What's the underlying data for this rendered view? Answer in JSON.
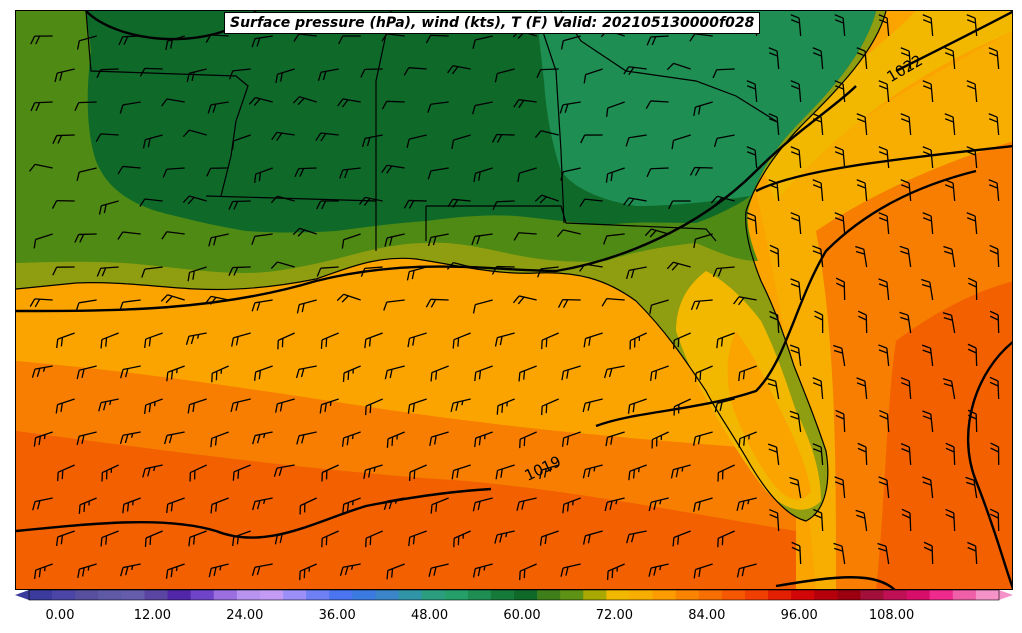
{
  "title": "Surface pressure (hPa), wind (kts), T (F) Valid: 202105130000f028",
  "isobars": [
    {
      "label": "1022"
    },
    {
      "label": "1019"
    }
  ],
  "colorbar": {
    "ticks": [
      "0.00",
      "12.00",
      "24.00",
      "36.00",
      "48.00",
      "60.00",
      "72.00",
      "84.00",
      "96.00",
      "108.00"
    ],
    "colors": [
      "#3b3b9e",
      "#4b46a6",
      "#58509e",
      "#5e5aa6",
      "#655cac",
      "#5a45a2",
      "#5226a8",
      "#6f44c9",
      "#9b6fe0",
      "#b893f0",
      "#c39bf4",
      "#9c8ff7",
      "#6f80f5",
      "#4a74f0",
      "#3b7ae0",
      "#3a86c8",
      "#2f95a7",
      "#2b9e80",
      "#25a06a",
      "#1f8e52",
      "#167a3a",
      "#0f6a2a",
      "#3e7f1a",
      "#5e9215",
      "#a9a800",
      "#f2b800",
      "#f7ae00",
      "#fc9c00",
      "#fa8400",
      "#f76f00",
      "#f55800",
      "#f03f00",
      "#e21f00",
      "#d20606",
      "#b5000c",
      "#9c0010",
      "#a2103a",
      "#bf0f55",
      "#d80f6a",
      "#ee2a8c",
      "#f060a8",
      "#f593c8"
    ]
  }
}
